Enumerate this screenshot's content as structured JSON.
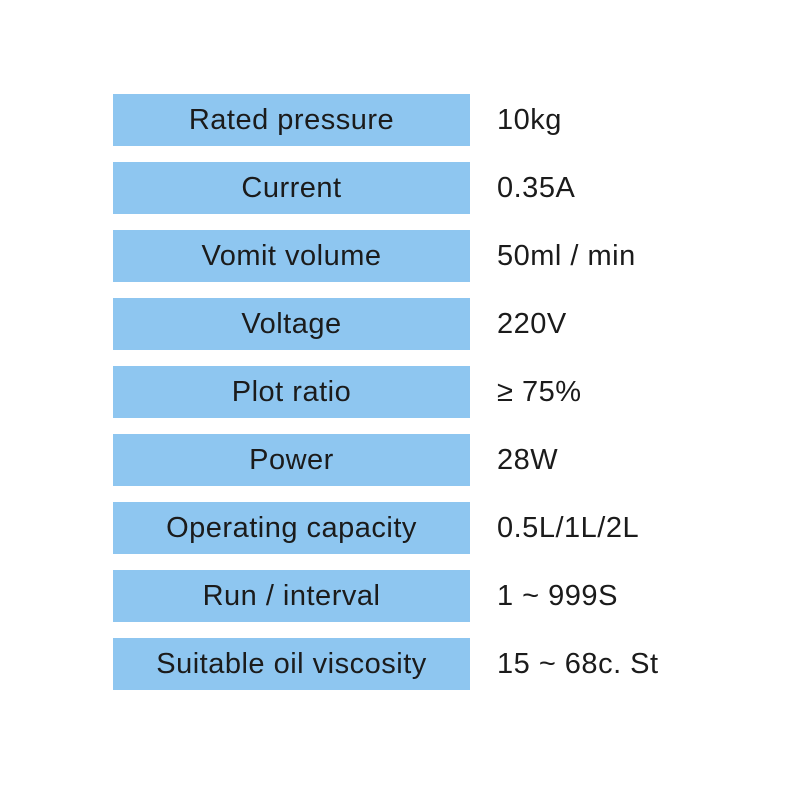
{
  "colors": {
    "page_bg": "#ffffff",
    "label_bg": "#8ec6f0",
    "text": "#1b1b1b"
  },
  "spec_table": {
    "rows": [
      {
        "label": "Rated pressure",
        "value": "10kg"
      },
      {
        "label": "Current",
        "value": "0.35A"
      },
      {
        "label": "Vomit volume",
        "value": "50ml / min"
      },
      {
        "label": "Voltage",
        "value": "220V"
      },
      {
        "label": "Plot ratio",
        "value": "≥ 75%"
      },
      {
        "label": "Power",
        "value": "28W"
      },
      {
        "label": "Operating capacity",
        "value": "0.5L/1L/2L"
      },
      {
        "label": "Run / interval",
        "value": "1 ~ 999S"
      },
      {
        "label": "Suitable oil viscosity",
        "value": "15 ~ 68c. St"
      }
    ]
  }
}
